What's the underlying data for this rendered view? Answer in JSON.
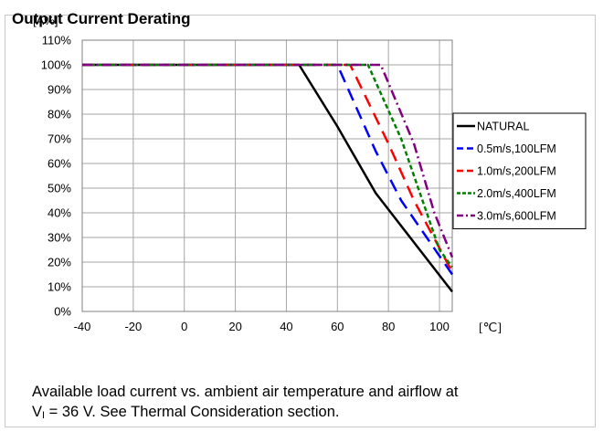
{
  "header": {
    "text": "Output Current Derating"
  },
  "caption": {
    "line1": "Available load current vs. ambient air temperature and airflow at",
    "line2_prefix": "V",
    "line2_sub": "I",
    "line2_rest": " = 36 V. See Thermal Consideration section."
  },
  "chart_data": {
    "type": "line",
    "title": "",
    "ylabel": "[A%]",
    "xlabel": "[℃]",
    "xlim": [
      -40,
      105
    ],
    "ylim": [
      0,
      110
    ],
    "x_ticks": [
      -40,
      -20,
      0,
      20,
      40,
      60,
      80,
      100
    ],
    "y_ticks": [
      0,
      10,
      20,
      30,
      40,
      50,
      60,
      70,
      80,
      90,
      100,
      110
    ],
    "y_tick_labels": [
      "0%",
      "10%",
      "20%",
      "30%",
      "40%",
      "50%",
      "60%",
      "70%",
      "80%",
      "90%",
      "100%",
      "110%"
    ],
    "grid": true,
    "legend_position": "right",
    "series": [
      {
        "name": "NATURAL",
        "color": "#000000",
        "dash": "solid",
        "points": [
          [
            -40,
            100
          ],
          [
            45,
            100
          ],
          [
            60,
            75
          ],
          [
            75,
            48
          ],
          [
            105,
            8
          ]
        ]
      },
      {
        "name": "0.5m/s,100LFM",
        "color": "#0000ff",
        "dash": "long-dash",
        "points": [
          [
            -40,
            100
          ],
          [
            60,
            100
          ],
          [
            75,
            65
          ],
          [
            85,
            45
          ],
          [
            105,
            15
          ]
        ]
      },
      {
        "name": "1.0m/s,200LFM",
        "color": "#ff0000",
        "dash": "long-dash",
        "points": [
          [
            -40,
            100
          ],
          [
            65,
            100
          ],
          [
            80,
            68
          ],
          [
            90,
            45
          ],
          [
            105,
            16
          ]
        ]
      },
      {
        "name": "2.0m/s,400LFM",
        "color": "#008000",
        "dash": "short-dash",
        "points": [
          [
            -40,
            100
          ],
          [
            72,
            100
          ],
          [
            85,
            70
          ],
          [
            95,
            40
          ],
          [
            100,
            25
          ],
          [
            105,
            18
          ]
        ]
      },
      {
        "name": "3.0m/s,600LFM",
        "color": "#800080",
        "dash": "dash-dot",
        "points": [
          [
            -40,
            100
          ],
          [
            77,
            100
          ],
          [
            90,
            68
          ],
          [
            98,
            40
          ],
          [
            105,
            22
          ]
        ]
      }
    ]
  }
}
